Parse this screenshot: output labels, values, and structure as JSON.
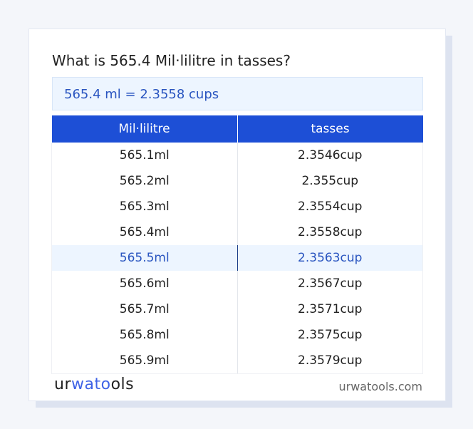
{
  "title": "What is 565.4 Mil·lilitre in tasses?",
  "result": "565.4 ml = 2.3558 cups",
  "table": {
    "headers": [
      "Mil·lilitre",
      "tasses"
    ],
    "rows": [
      [
        "565.1ml",
        "2.3546cup"
      ],
      [
        "565.2ml",
        "2.355cup"
      ],
      [
        "565.3ml",
        "2.3554cup"
      ],
      [
        "565.4ml",
        "2.3558cup"
      ],
      [
        "565.5ml",
        "2.3563cup"
      ],
      [
        "565.6ml",
        "2.3567cup"
      ],
      [
        "565.7ml",
        "2.3571cup"
      ],
      [
        "565.8ml",
        "2.3575cup"
      ],
      [
        "565.9ml",
        "2.3579cup"
      ]
    ],
    "highlighted_row": 4
  },
  "footer": {
    "logo": {
      "part1": "ur",
      "part2": "wato",
      "part3": "ols"
    },
    "site": "urwatools.com"
  },
  "colors": {
    "accent": "#1d4fd6",
    "highlight_bg": "#edf5ff",
    "highlight_text": "#2a55c0"
  }
}
